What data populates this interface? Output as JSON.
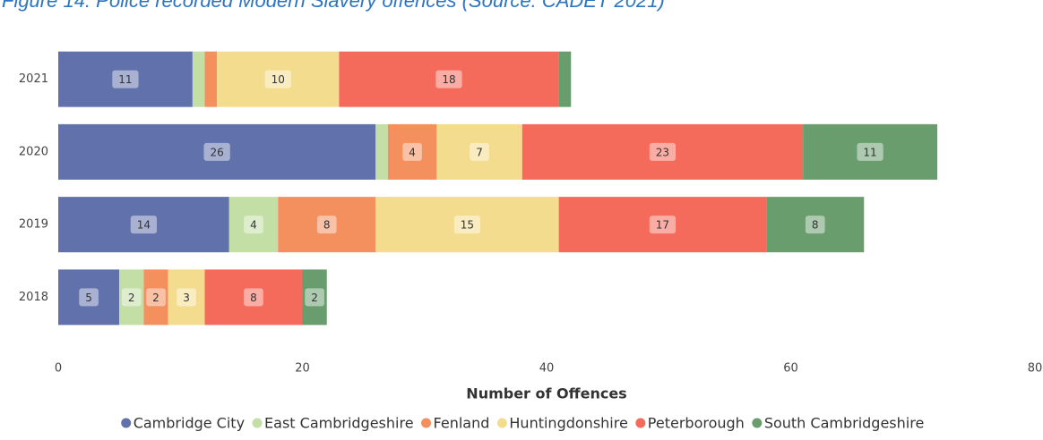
{
  "chart_data": {
    "type": "stacked-barh",
    "title": "Figure 14: Police recorded Modern Slavery offences (Source: CADET 2021)",
    "x_label": "Number of Offences",
    "categories": [
      "2021",
      "2020",
      "2019",
      "2018"
    ],
    "series": [
      {
        "name": "Cambridge City",
        "color": "#6171ab",
        "values": [
          11,
          26,
          14,
          5
        ]
      },
      {
        "name": "East Cambridgeshire",
        "color": "#c4dfa6",
        "values": [
          1,
          1,
          4,
          2
        ]
      },
      {
        "name": "Fenland",
        "color": "#f48f5e",
        "values": [
          1,
          4,
          8,
          2
        ]
      },
      {
        "name": "Huntingdonshire",
        "color": "#f4dc8e",
        "values": [
          10,
          7,
          15,
          3
        ]
      },
      {
        "name": "Peterborough",
        "color": "#f46b5c",
        "values": [
          18,
          23,
          17,
          8
        ]
      },
      {
        "name": "South Cambridgeshire",
        "color": "#6a9d6d",
        "values": [
          1,
          11,
          8,
          2
        ]
      }
    ],
    "xlim": [
      0,
      80
    ],
    "xticks": [
      0,
      20,
      40,
      60,
      80
    ],
    "grid": false,
    "legend": "bottom"
  }
}
